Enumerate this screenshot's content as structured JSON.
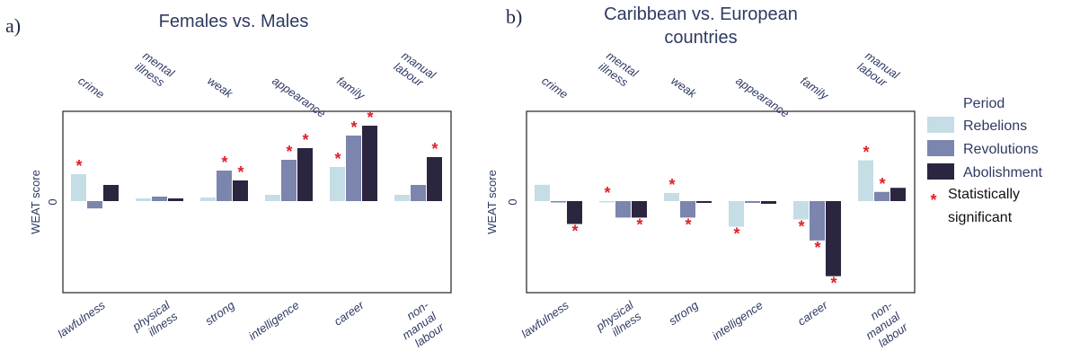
{
  "chart_data": [
    {
      "type": "bar",
      "panel": "a)",
      "title": "Females vs. Males",
      "ylabel": "WEAT score",
      "ytick": "0",
      "ylim": [
        -1.0,
        1.0
      ],
      "top_categories": [
        "crime",
        "mental\nillness",
        "weak",
        "appearance",
        "family",
        "manual\nlabour"
      ],
      "bottom_categories": [
        "lawfulness",
        "physical\nillness",
        "strong",
        "intelligence",
        "career",
        "non-\nmanual\nlabour"
      ],
      "series": [
        {
          "name": "Rebelions",
          "color": "#c5dde4",
          "values": [
            0.3,
            0.03,
            0.04,
            0.07,
            0.38,
            0.07
          ],
          "significant": [
            true,
            false,
            false,
            false,
            true,
            false
          ]
        },
        {
          "name": "Revolutions",
          "color": "#7b85ad",
          "values": [
            -0.08,
            0.05,
            0.34,
            0.46,
            0.73,
            0.18
          ],
          "significant": [
            false,
            false,
            true,
            true,
            true,
            false
          ]
        },
        {
          "name": "Abolishment",
          "color": "#2b2540",
          "values": [
            0.18,
            0.03,
            0.23,
            0.59,
            0.84,
            0.49
          ],
          "significant": [
            false,
            false,
            true,
            true,
            true,
            true
          ]
        }
      ]
    },
    {
      "type": "bar",
      "panel": "b)",
      "title": "Caribbean vs. European\ncountries",
      "ylabel": "WEAT score",
      "ytick": "0",
      "ylim": [
        -1.0,
        0.88
      ],
      "top_categories": [
        "crime",
        "mental\nillness",
        "weak",
        "appearance",
        "family",
        "manual\nlabour"
      ],
      "bottom_categories": [
        "lawfulness",
        "physical\nillness",
        "strong",
        "intelligence",
        "career",
        "non-\nmanual\nlabour"
      ],
      "series": [
        {
          "name": "Rebelions",
          "color": "#c5dde4",
          "values": [
            0.16,
            0.0,
            0.08,
            -0.28,
            -0.2,
            0.4
          ],
          "significant": [
            false,
            true,
            true,
            true,
            true,
            true
          ]
        },
        {
          "name": "Revolutions",
          "color": "#7b85ad",
          "values": [
            -0.01,
            -0.18,
            -0.18,
            -0.02,
            -0.43,
            0.09
          ],
          "significant": [
            false,
            false,
            true,
            false,
            true,
            true
          ]
        },
        {
          "name": "Abolishment",
          "color": "#2b2540",
          "values": [
            -0.25,
            -0.18,
            -0.02,
            -0.03,
            -0.82,
            0.13
          ],
          "significant": [
            true,
            true,
            false,
            false,
            true,
            false
          ]
        }
      ]
    }
  ],
  "legend": {
    "title": "Period",
    "items": [
      "Rebelions",
      "Revolutions",
      "Abolishment"
    ],
    "significance_symbol": "*",
    "significance_label": "Statistically\nsignificant"
  }
}
